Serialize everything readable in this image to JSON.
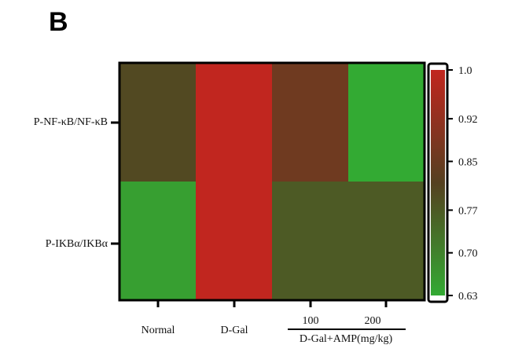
{
  "panel_label": "B",
  "chart_data": {
    "type": "heatmap",
    "rows": [
      "P-NF-κB/NF-κB",
      "P-IKBα/IKBα"
    ],
    "columns": [
      "Normal",
      "D-Gal",
      "100",
      "200"
    ],
    "group_label": "D-Gal+AMP(mg/kg)",
    "values": [
      [
        0.8,
        1.0,
        0.86,
        0.63
      ],
      [
        0.65,
        1.0,
        0.77,
        0.77
      ]
    ],
    "colorbar": {
      "min": 0.63,
      "max": 1.0,
      "ticks": [
        "1.0",
        "0.92",
        "0.85",
        "0.77",
        "0.70",
        "0.63"
      ],
      "tick_values": [
        1.0,
        0.92,
        0.85,
        0.77,
        0.7,
        0.63
      ],
      "colors": [
        "#33aa33",
        "#554020",
        "#c1261f"
      ]
    }
  }
}
